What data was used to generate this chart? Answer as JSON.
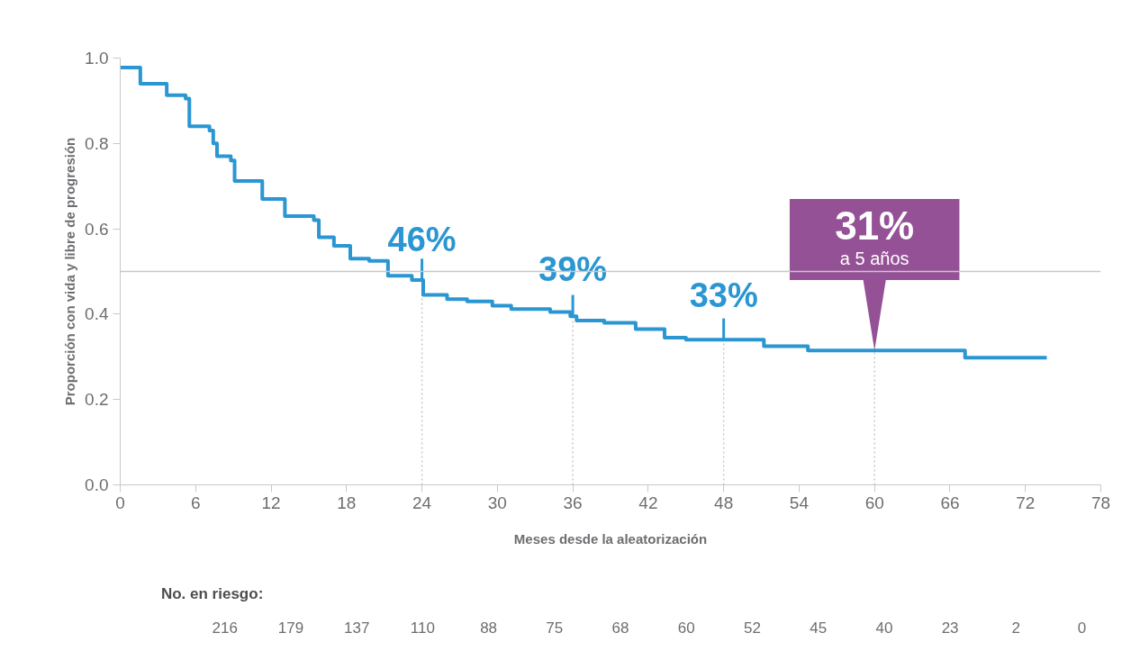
{
  "chart_data": {
    "type": "step",
    "xlabel": "Meses desde la aleatorización",
    "ylabel": "Proporción con vida y libre de progresión",
    "x": [
      0,
      1.6,
      3.7,
      5.2,
      5.5,
      7.1,
      7.4,
      7.7,
      8.8,
      9.1,
      11.3,
      13.1,
      15.4,
      15.8,
      17.0,
      18.3,
      19.8,
      21.3,
      23.2,
      24.1,
      26.0,
      27.6,
      29.6,
      31.1,
      34.2,
      35.8,
      36.3,
      38.5,
      41.0,
      43.3,
      45.0,
      51.2,
      54.7,
      67.2,
      73.7
    ],
    "series": [
      {
        "color": "#2a96d2",
        "values": [
          0.978,
          0.94,
          0.913,
          0.905,
          0.84,
          0.83,
          0.8,
          0.77,
          0.76,
          0.712,
          0.67,
          0.63,
          0.62,
          0.58,
          0.56,
          0.53,
          0.525,
          0.49,
          0.48,
          0.445,
          0.435,
          0.43,
          0.42,
          0.412,
          0.405,
          0.395,
          0.385,
          0.38,
          0.365,
          0.345,
          0.34,
          0.325,
          0.315,
          0.298,
          0.298
        ]
      }
    ],
    "xlim": [
      0,
      78
    ],
    "ylim": [
      0,
      1.0
    ],
    "xticks": [
      0,
      6,
      12,
      18,
      24,
      30,
      36,
      42,
      48,
      54,
      60,
      66,
      72,
      78
    ],
    "yticks": [
      {
        "value": 0,
        "label": "0.0"
      },
      {
        "value": 0.2,
        "label": "0.2"
      },
      {
        "value": 0.4,
        "label": "0.4"
      },
      {
        "value": 0.6,
        "label": "0.6"
      },
      {
        "value": 0.8,
        "label": "0.8"
      },
      {
        "value": 1.0,
        "label": "1.0"
      }
    ],
    "ref_lines": [
      {
        "axis": "y",
        "value": 0.5,
        "color": "#c8c8c8"
      },
      {
        "axis": "x",
        "value": 24,
        "color": "#c8c8c8",
        "line_style": "dotted"
      },
      {
        "axis": "x",
        "value": 36,
        "color": "#c8c8c8",
        "line_style": "dotted"
      },
      {
        "axis": "x",
        "value": 48,
        "color": "#c8c8c8",
        "line_style": "dotted"
      },
      {
        "axis": "x",
        "value": 60,
        "color": "#c8c8c8",
        "line_style": "dotted"
      }
    ],
    "grid": false,
    "annotations": [
      {
        "text": "46%",
        "x": 24,
        "y": 0.46
      },
      {
        "text": "39%",
        "x": 36,
        "y": 0.39
      },
      {
        "text": "33%",
        "x": 48,
        "y": 0.33
      },
      {
        "text": "31%",
        "x": 60,
        "y": 0.31
      },
      "a 5 años",
      "No. en riesgo:",
      "216",
      "179",
      "137",
      "110",
      "88",
      "75",
      "68",
      "60",
      "52",
      "45",
      "40",
      "23",
      "2",
      "0"
    ]
  }
}
